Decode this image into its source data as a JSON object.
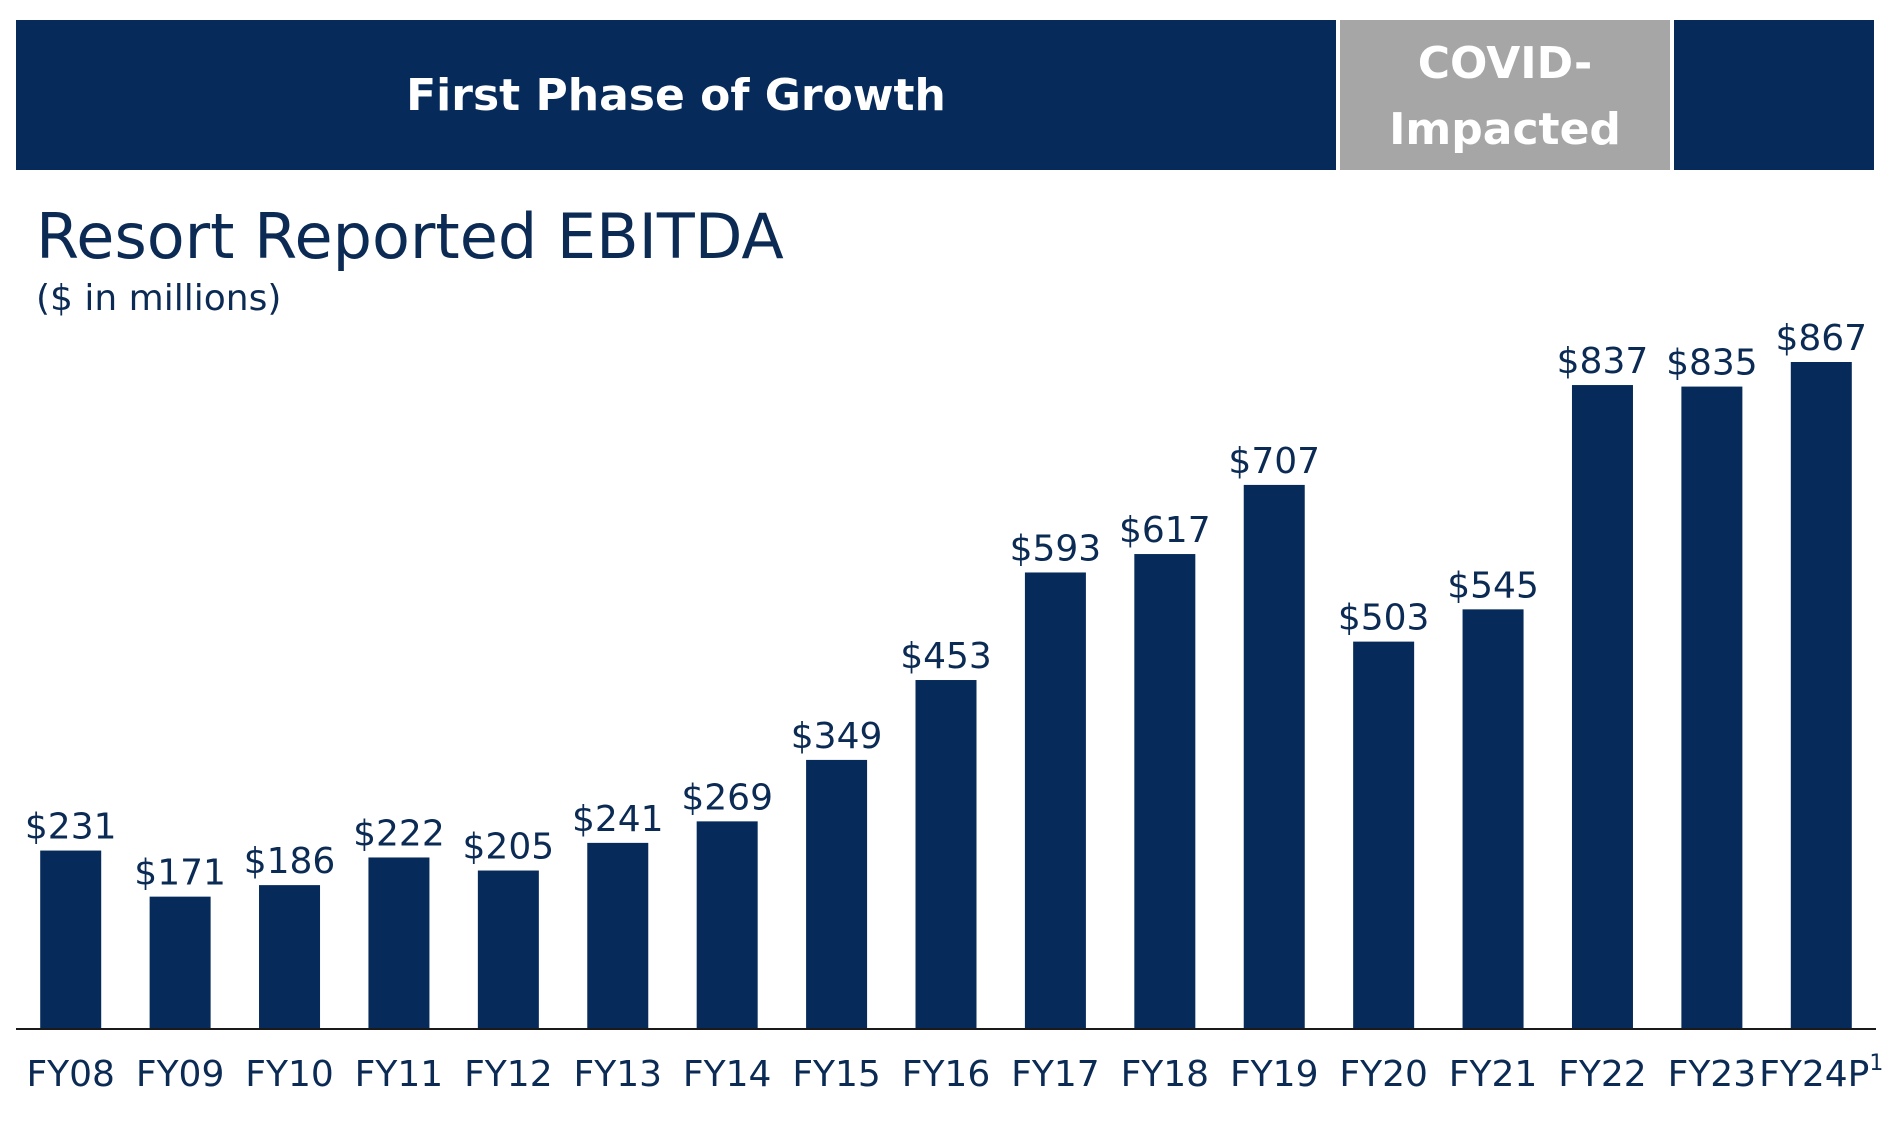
{
  "colors": {
    "navy": "#062b5a",
    "gray": "#a6a6a6",
    "text": "#0b2b55",
    "axis": "#1a1a1a"
  },
  "banners": {
    "growth_label": "First Phase of Growth",
    "covid_label_line1": "COVID-",
    "covid_label_line2": "Impacted"
  },
  "chart_data": {
    "type": "bar",
    "title": "Resort Reported EBITDA",
    "subtitle": "($ in millions)",
    "categories": [
      "FY08",
      "FY09",
      "FY10",
      "FY11",
      "FY12",
      "FY13",
      "FY14",
      "FY15",
      "FY16",
      "FY17",
      "FY18",
      "FY19",
      "FY20",
      "FY21",
      "FY22",
      "FY23",
      "FY24P"
    ],
    "category_footnote": {
      "category": "FY24P",
      "marker": "1"
    },
    "values": [
      231,
      171,
      186,
      222,
      205,
      241,
      269,
      349,
      453,
      593,
      617,
      707,
      503,
      545,
      837,
      835,
      867
    ],
    "value_labels": [
      "$231",
      "$171",
      "$186",
      "$222",
      "$205",
      "$241",
      "$269",
      "$349",
      "$453",
      "$593",
      "$617",
      "$707",
      "$503",
      "$545",
      "$837",
      "$835",
      "$867"
    ],
    "ylim": [
      0,
      867
    ],
    "grid": false,
    "legend": "none"
  }
}
